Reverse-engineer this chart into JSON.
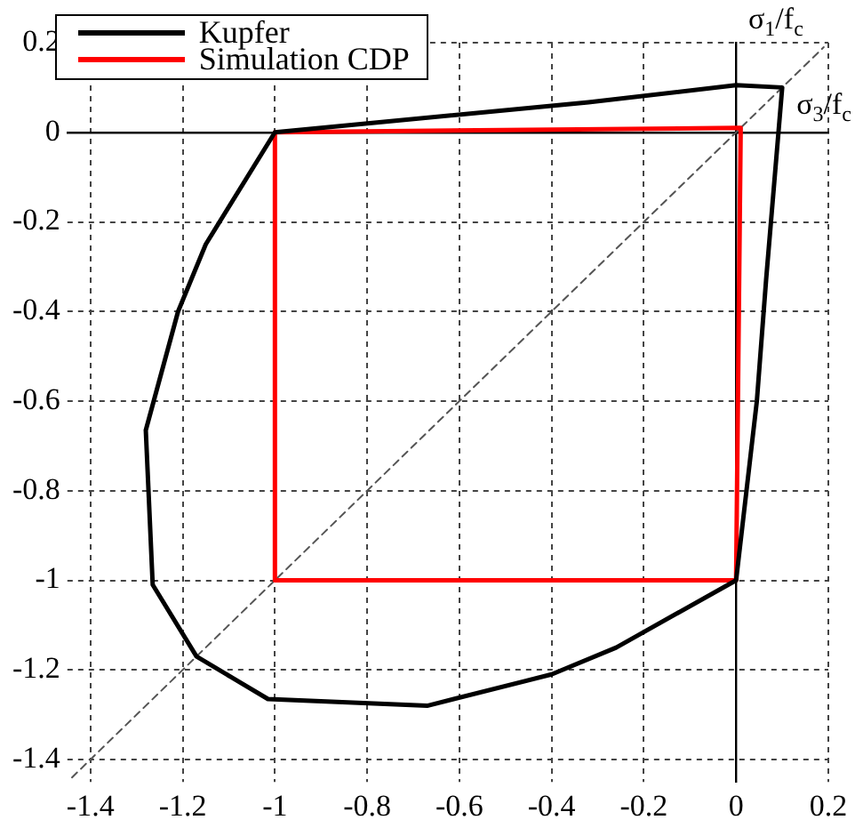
{
  "chart_data": {
    "type": "line",
    "xlabel": "σ$_{3}$/f$_{c}$",
    "ylabel": "σ$_{1}$/f$_{c}$",
    "xlim": [
      -1.45,
      0.2
    ],
    "ylim": [
      -1.45,
      0.2
    ],
    "xticks": [
      -1.4,
      -1.2,
      -1,
      -0.8,
      -0.6,
      -0.4,
      -0.2,
      0,
      0.2
    ],
    "yticks": [
      -1.4,
      -1.2,
      -1,
      -0.8,
      -0.6,
      -0.4,
      -0.2,
      0,
      0.2
    ],
    "grid": true,
    "legend": "top left",
    "marker": "none",
    "line_style": "solid",
    "series": [
      {
        "name": "Kupfer",
        "color": "#000000",
        "x": [
          -1.28,
          -1.21,
          -1.15,
          -1,
          -0.32,
          0,
          0.1,
          null,
          -1.28,
          -1.265,
          -1.17,
          -1.015,
          -0.67,
          -0.4,
          -0.26,
          0,
          0.045,
          0.065,
          0.1
        ],
        "values": [
          -0.665,
          -0.4,
          -0.25,
          0,
          0.067,
          0.105,
          0.1,
          null,
          -0.665,
          -1.01,
          -1.17,
          -1.265,
          -1.28,
          -1.21,
          -1.15,
          -1,
          -0.6,
          -0.33,
          0.1
        ]
      },
      {
        "name": "Simulation CDP",
        "color": "#ff0000",
        "x": [
          -1,
          0.01,
          null,
          -1,
          -1,
          0,
          0.01
        ],
        "values": [
          0,
          0.01,
          null,
          0,
          -1,
          -1,
          0.01
        ]
      },
      {
        "color": "#555555",
        "line_style": "dashed",
        "x": [
          -1.44,
          0.19
        ],
        "values": [
          -1.44,
          0.19
        ]
      }
    ]
  }
}
